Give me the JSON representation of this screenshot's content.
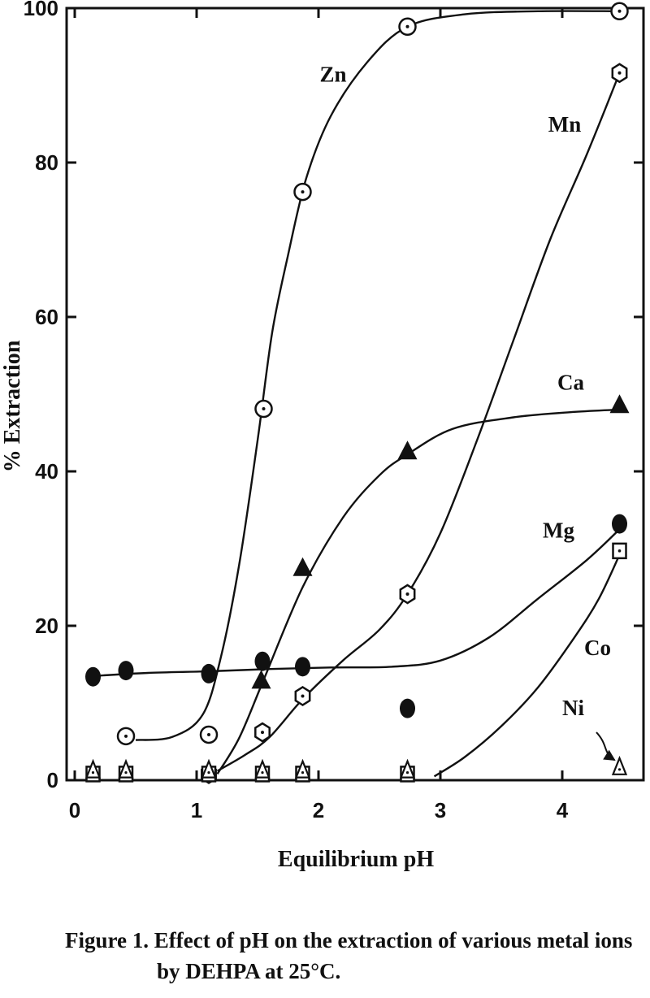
{
  "caption": {
    "line1": "Figure 1.  Effect of pH on the extraction of various metal ions",
    "line2": "by DEHPA at 25°C."
  },
  "chart_data": {
    "type": "scatter",
    "title": "",
    "xlabel": "Equilibrium  pH",
    "ylabel": "% Extraction",
    "xlim": [
      0,
      4.7
    ],
    "ylim": [
      0,
      100
    ],
    "xticks": [
      0,
      1,
      2,
      3,
      4
    ],
    "yticks": [
      0,
      20,
      40,
      60,
      80,
      100
    ],
    "xtick_labels": [
      "0",
      "1",
      "2",
      "3",
      "4"
    ],
    "ytick_labels": [
      "0",
      "20",
      "40",
      "60",
      "80",
      "100"
    ],
    "grid": false,
    "series": [
      {
        "name": "Zn",
        "marker": "circle-dot",
        "points": [
          [
            0.42,
            5.7
          ],
          [
            1.1,
            5.9
          ],
          [
            1.55,
            48.1
          ],
          [
            1.87,
            76.2
          ],
          [
            2.73,
            97.6
          ],
          [
            4.47,
            99.6
          ]
        ],
        "curve": [
          [
            0.5,
            5.2
          ],
          [
            0.8,
            5.6
          ],
          [
            1.05,
            8.5
          ],
          [
            1.2,
            16
          ],
          [
            1.35,
            28
          ],
          [
            1.5,
            44
          ],
          [
            1.62,
            58
          ],
          [
            1.75,
            68
          ],
          [
            1.9,
            78
          ],
          [
            2.1,
            86
          ],
          [
            2.4,
            93
          ],
          [
            2.73,
            97.6
          ],
          [
            3.2,
            99.2
          ],
          [
            3.8,
            99.6
          ],
          [
            4.47,
            99.6
          ]
        ]
      },
      {
        "name": "Mn",
        "marker": "hexagon-dot",
        "points": [
          [
            1.1,
            0.8
          ],
          [
            1.54,
            6.2
          ],
          [
            1.87,
            10.9
          ],
          [
            2.73,
            24.1
          ],
          [
            4.47,
            91.6
          ]
        ],
        "curve": [
          [
            1.17,
            1.2
          ],
          [
            1.4,
            3.3
          ],
          [
            1.6,
            5.6
          ],
          [
            1.87,
            10.5
          ],
          [
            2.2,
            15.5
          ],
          [
            2.5,
            19.5
          ],
          [
            2.73,
            24.1
          ],
          [
            3.0,
            32
          ],
          [
            3.3,
            44
          ],
          [
            3.6,
            57
          ],
          [
            3.9,
            70
          ],
          [
            4.2,
            81
          ],
          [
            4.47,
            91.6
          ]
        ]
      },
      {
        "name": "Ca",
        "marker": "triangle-filled",
        "points": [
          [
            1.53,
            12.8
          ],
          [
            1.87,
            27.4
          ],
          [
            2.73,
            42.5
          ],
          [
            4.47,
            48.5
          ]
        ],
        "curve": [
          [
            1.17,
            0.8
          ],
          [
            1.35,
            5.5
          ],
          [
            1.55,
            13
          ],
          [
            1.87,
            25
          ],
          [
            2.2,
            34
          ],
          [
            2.5,
            39.5
          ],
          [
            2.73,
            42.2
          ],
          [
            3.1,
            45.5
          ],
          [
            3.6,
            47
          ],
          [
            4.1,
            47.7
          ],
          [
            4.47,
            48
          ]
        ]
      },
      {
        "name": "Mg",
        "marker": "circle-filled",
        "points": [
          [
            0.15,
            13.4
          ],
          [
            0.42,
            14.2
          ],
          [
            1.1,
            13.8
          ],
          [
            1.54,
            15.4
          ],
          [
            1.87,
            14.7
          ],
          [
            2.73,
            9.3
          ],
          [
            4.47,
            33.2
          ]
        ],
        "curve": [
          [
            0.15,
            13.5
          ],
          [
            0.6,
            13.9
          ],
          [
            1.1,
            14.1
          ],
          [
            1.6,
            14.4
          ],
          [
            2.1,
            14.6
          ],
          [
            2.6,
            14.7
          ],
          [
            3.0,
            15.5
          ],
          [
            3.4,
            18.5
          ],
          [
            3.8,
            23.5
          ],
          [
            4.2,
            28.5
          ],
          [
            4.47,
            32.5
          ]
        ]
      },
      {
        "name": "Co",
        "marker": "square-dot",
        "points": [
          [
            0.15,
            0.8
          ],
          [
            0.42,
            0.8
          ],
          [
            1.1,
            0.8
          ],
          [
            1.54,
            0.8
          ],
          [
            1.87,
            0.8
          ],
          [
            2.73,
            0.8
          ],
          [
            4.47,
            29.7
          ]
        ],
        "curve": [
          [
            2.95,
            0.5
          ],
          [
            3.2,
            3
          ],
          [
            3.5,
            7
          ],
          [
            3.8,
            12
          ],
          [
            4.1,
            18.5
          ],
          [
            4.3,
            23.5
          ],
          [
            4.47,
            29.2
          ]
        ]
      },
      {
        "name": "Ni",
        "marker": "triangle-open",
        "points": [
          [
            0.15,
            1.2
          ],
          [
            0.42,
            1.2
          ],
          [
            1.1,
            1.2
          ],
          [
            1.54,
            1.2
          ],
          [
            1.87,
            1.2
          ],
          [
            2.73,
            1.2
          ],
          [
            4.47,
            1.6
          ]
        ],
        "arrow": [
          [
            4.28,
            6.2
          ],
          [
            4.38,
            4.5
          ],
          [
            4.33,
            3.6
          ],
          [
            4.43,
            2.6
          ]
        ]
      }
    ],
    "labels": [
      {
        "text": "Zn",
        "x": 2.12,
        "y": 90.5
      },
      {
        "text": "Mn",
        "x": 4.02,
        "y": 84.0
      },
      {
        "text": "Ca",
        "x": 4.07,
        "y": 50.6
      },
      {
        "text": "Mg",
        "x": 3.97,
        "y": 31.4
      },
      {
        "text": "Co",
        "x": 4.29,
        "y": 16.2
      },
      {
        "text": "Ni",
        "x": 4.09,
        "y": 8.4
      }
    ]
  }
}
